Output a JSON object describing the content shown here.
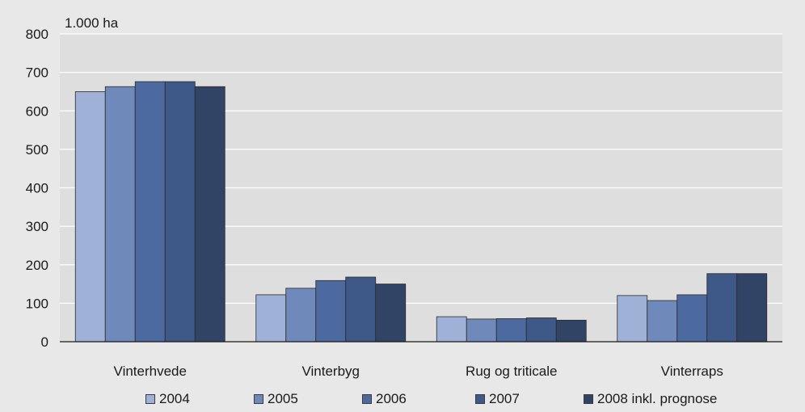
{
  "chart_data": {
    "type": "bar",
    "unit_label": "1.000 ha",
    "categories": [
      "Vinterhvede",
      "Vinterbyg",
      "Rug og triticale",
      "Vinterraps"
    ],
    "series": [
      {
        "name": "2004",
        "color": "#9fb1d6",
        "values": [
          650,
          122,
          65,
          120
        ]
      },
      {
        "name": "2005",
        "color": "#6f89ba",
        "values": [
          663,
          139,
          59,
          107
        ]
      },
      {
        "name": "2006",
        "color": "#4d6aa0",
        "values": [
          676,
          159,
          60,
          122
        ]
      },
      {
        "name": "2007",
        "color": "#3e5888",
        "values": [
          676,
          168,
          62,
          177
        ]
      },
      {
        "name": "2008 inkl. prognose",
        "color": "#324466",
        "values": [
          663,
          150,
          56,
          177
        ]
      }
    ],
    "ylim": [
      0,
      800
    ],
    "yticks": [
      0,
      100,
      200,
      300,
      400,
      500,
      600,
      700,
      800
    ],
    "grid": true,
    "legend_position": "bottom"
  }
}
